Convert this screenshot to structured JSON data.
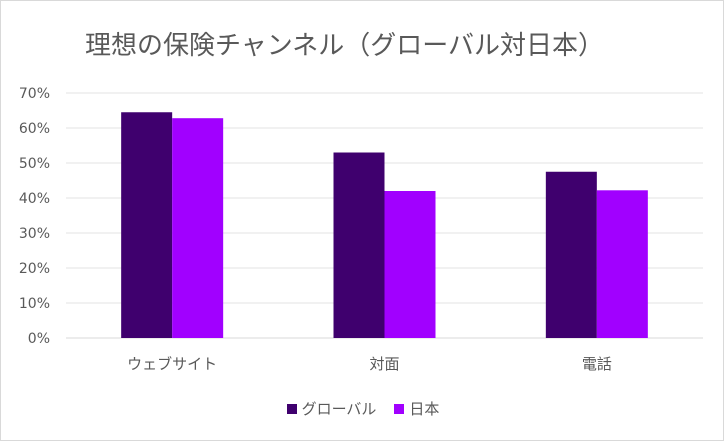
{
  "chart_data": {
    "type": "bar",
    "title": "理想の保険チャンネル（グローバル対日本）",
    "categories": [
      "ウェブサイト",
      "対面",
      "電話"
    ],
    "series": [
      {
        "name": "グローバル",
        "values": [
          0.645,
          0.53,
          0.475
        ],
        "color": "#3f006e"
      },
      {
        "name": "日本",
        "values": [
          0.628,
          0.42,
          0.422
        ],
        "color": "#a100ff"
      }
    ],
    "y_ticks": [
      "0%",
      "10%",
      "20%",
      "30%",
      "40%",
      "50%",
      "60%",
      "70%"
    ],
    "ylim": [
      0,
      0.7
    ],
    "grid": true,
    "legend_position": "bottom"
  }
}
